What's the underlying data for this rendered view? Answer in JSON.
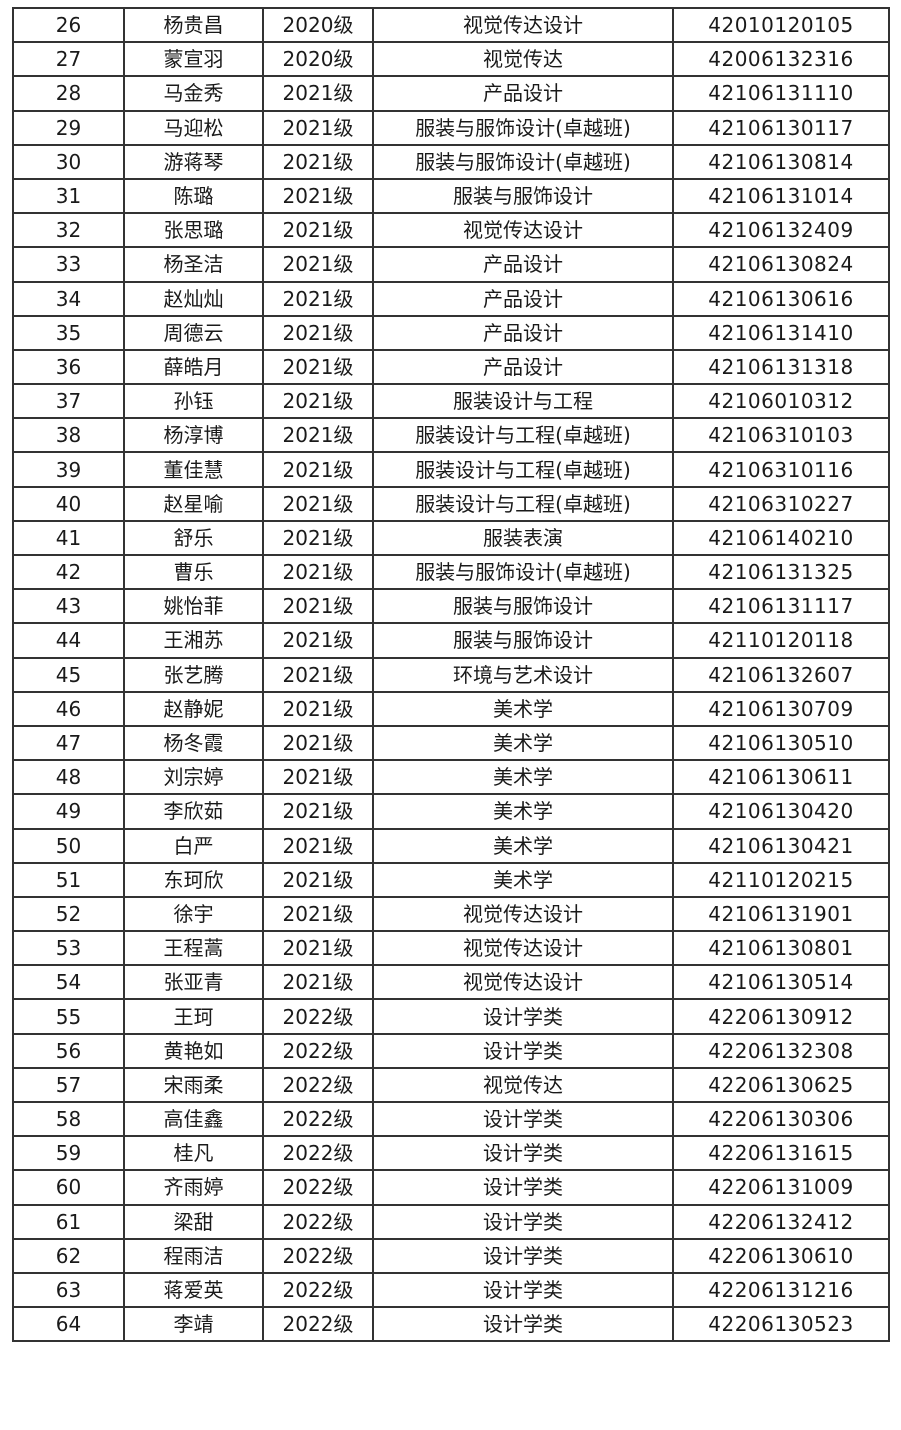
{
  "table": {
    "rows": [
      [
        "26",
        "杨贵昌",
        "2020级",
        "视觉传达设计",
        "42010120105"
      ],
      [
        "27",
        "蒙宣羽",
        "2020级",
        "视觉传达",
        "42006132316"
      ],
      [
        "28",
        "马金秀",
        "2021级",
        "产品设计",
        "42106131110"
      ],
      [
        "29",
        "马迎松",
        "2021级",
        "服装与服饰设计(卓越班)",
        "42106130117"
      ],
      [
        "30",
        "游蒋琴",
        "2021级",
        "服装与服饰设计(卓越班)",
        "42106130814"
      ],
      [
        "31",
        "陈璐",
        "2021级",
        "服装与服饰设计",
        "42106131014"
      ],
      [
        "32",
        "张思璐",
        "2021级",
        "视觉传达设计",
        "42106132409"
      ],
      [
        "33",
        "杨圣洁",
        "2021级",
        "产品设计",
        "42106130824"
      ],
      [
        "34",
        "赵灿灿",
        "2021级",
        "产品设计",
        "42106130616"
      ],
      [
        "35",
        "周德云",
        "2021级",
        "产品设计",
        "42106131410"
      ],
      [
        "36",
        "薛皓月",
        "2021级",
        "产品设计",
        "42106131318"
      ],
      [
        "37",
        "孙钰",
        "2021级",
        "服装设计与工程",
        "42106010312"
      ],
      [
        "38",
        "杨淳博",
        "2021级",
        "服装设计与工程(卓越班)",
        "42106310103"
      ],
      [
        "39",
        "董佳慧",
        "2021级",
        "服装设计与工程(卓越班)",
        "42106310116"
      ],
      [
        "40",
        "赵星喻",
        "2021级",
        "服装设计与工程(卓越班)",
        "42106310227"
      ],
      [
        "41",
        "舒乐",
        "2021级",
        "服装表演",
        "42106140210"
      ],
      [
        "42",
        "曹乐",
        "2021级",
        "服装与服饰设计(卓越班)",
        "42106131325"
      ],
      [
        "43",
        "姚怡菲",
        "2021级",
        "服装与服饰设计",
        "42106131117"
      ],
      [
        "44",
        "王湘苏",
        "2021级",
        "服装与服饰设计",
        "42110120118"
      ],
      [
        "45",
        "张艺腾",
        "2021级",
        "环境与艺术设计",
        "42106132607"
      ],
      [
        "46",
        "赵静妮",
        "2021级",
        "美术学",
        "42106130709"
      ],
      [
        "47",
        "杨冬霞",
        "2021级",
        "美术学",
        "42106130510"
      ],
      [
        "48",
        "刘宗婷",
        "2021级",
        "美术学",
        "42106130611"
      ],
      [
        "49",
        "李欣茹",
        "2021级",
        "美术学",
        "42106130420"
      ],
      [
        "50",
        "白严",
        "2021级",
        "美术学",
        "42106130421"
      ],
      [
        "51",
        "东珂欣",
        "2021级",
        "美术学",
        "42110120215"
      ],
      [
        "52",
        "徐宇",
        "2021级",
        "视觉传达设计",
        "42106131901"
      ],
      [
        "53",
        "王程蒿",
        "2021级",
        "视觉传达设计",
        "42106130801"
      ],
      [
        "54",
        "张亚青",
        "2021级",
        "视觉传达设计",
        "42106130514"
      ],
      [
        "55",
        "王珂",
        "2022级",
        "设计学类",
        "42206130912"
      ],
      [
        "56",
        "黄艳如",
        "2022级",
        "设计学类",
        "42206132308"
      ],
      [
        "57",
        "宋雨柔",
        "2022级",
        "视觉传达",
        "42206130625"
      ],
      [
        "58",
        "高佳鑫",
        "2022级",
        "设计学类",
        "42206130306"
      ],
      [
        "59",
        "桂凡",
        "2022级",
        "设计学类",
        "42206131615"
      ],
      [
        "60",
        "齐雨婷",
        "2022级",
        "设计学类",
        "42206131009"
      ],
      [
        "61",
        "梁甜",
        "2022级",
        "设计学类",
        "42206132412"
      ],
      [
        "62",
        "程雨洁",
        "2022级",
        "设计学类",
        "42206130610"
      ],
      [
        "63",
        "蒋爱英",
        "2022级",
        "设计学类",
        "42206131216"
      ],
      [
        "64",
        "李靖",
        "2022级",
        "设计学类",
        "42206130523"
      ]
    ]
  }
}
